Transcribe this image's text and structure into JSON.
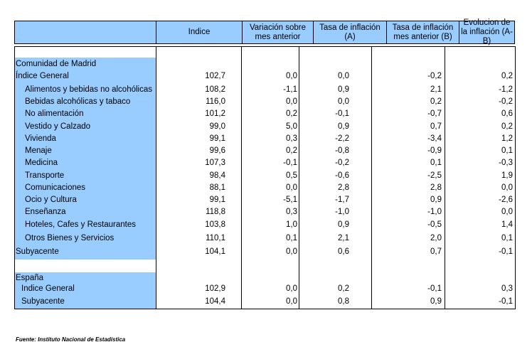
{
  "headers": {
    "indice": "Indice",
    "var_mes": "Variación sobre mes anterior",
    "tasa_a": "Tasa de inflación (A)",
    "tasa_b": "Tasa de inflación mes anterior (B)",
    "evolucion": "Evolucion de la inflación (A-B)"
  },
  "madrid_title": "Comunidad de Madrid",
  "madrid_rows": [
    {
      "label": "Índice General",
      "indice": "102,7",
      "var": "0,0",
      "a": "0,0",
      "b": "-0,2",
      "ab": "0,2"
    },
    {
      "label": "Alimentos y bebidas no alcohólicas",
      "indice": "108,2",
      "var": "-1,1",
      "a": "0,9",
      "b": "2,1",
      "ab": "-1,2"
    },
    {
      "label": "Bebidas alcohólicas y tabaco",
      "indice": "116,0",
      "var": "0,0",
      "a": "0,0",
      "b": "0,2",
      "ab": "-0,2"
    },
    {
      "label": "No alimentación",
      "indice": "101,2",
      "var": "0,2",
      "a": "-0,1",
      "b": "-0,7",
      "ab": "0,6"
    },
    {
      "label": "Vestido y Calzado",
      "indice": "99,0",
      "var": "5,0",
      "a": "0,9",
      "b": "0,7",
      "ab": "0,2"
    },
    {
      "label": "Vivienda",
      "indice": "99,1",
      "var": "0,3",
      "a": "-2,2",
      "b": "-3,4",
      "ab": "1,2"
    },
    {
      "label": "Menaje",
      "indice": "99,6",
      "var": "0,2",
      "a": "-0,8",
      "b": "-0,9",
      "ab": "0,1"
    },
    {
      "label": "Medicina",
      "indice": "107,3",
      "var": "-0,1",
      "a": "-0,2",
      "b": "0,1",
      "ab": "-0,3"
    },
    {
      "label": "Transporte",
      "indice": "98,4",
      "var": "0,5",
      "a": "-0,6",
      "b": "-2,5",
      "ab": "1,9"
    },
    {
      "label": "Comunicaciones",
      "indice": "88,1",
      "var": "0,0",
      "a": "2,8",
      "b": "2,8",
      "ab": "0,0"
    },
    {
      "label": "Ocio y Cultura",
      "indice": "99,1",
      "var": "-5,1",
      "a": "-1,7",
      "b": "0,9",
      "ab": "-2,6"
    },
    {
      "label": "Enseñanza",
      "indice": "118,8",
      "var": "0,3",
      "a": "-1,0",
      "b": "-1,0",
      "ab": "0,0"
    },
    {
      "label": "Hoteles, Cafes y Restaurantes",
      "indice": "103,8",
      "var": "1,0",
      "a": "0,9",
      "b": "-0,5",
      "ab": "1,4"
    },
    {
      "label": "Otros Bienes y Servicios",
      "indice": "110,1",
      "var": "0,1",
      "a": "2,1",
      "b": "2,0",
      "ab": "0,1"
    },
    {
      "label": "Subyacente",
      "indice": "104,1",
      "var": "0,0",
      "a": "0,6",
      "b": "0,7",
      "ab": "-0,1"
    }
  ],
  "espana_title": "España",
  "espana_rows": [
    {
      "label": "Indice General",
      "indice": "102,9",
      "var": "0,0",
      "a": "0,2",
      "b": "-0,1",
      "ab": "0,3"
    },
    {
      "label": "Subyacente",
      "indice": "104,4",
      "var": "0,0",
      "a": "0,8",
      "b": "0,9",
      "ab": "-0,1"
    }
  ],
  "source": "Fuente: Instituto Nacional de Estadística",
  "colors": {
    "header_bg": "#99ccff",
    "label_bg": "#99ccff"
  }
}
